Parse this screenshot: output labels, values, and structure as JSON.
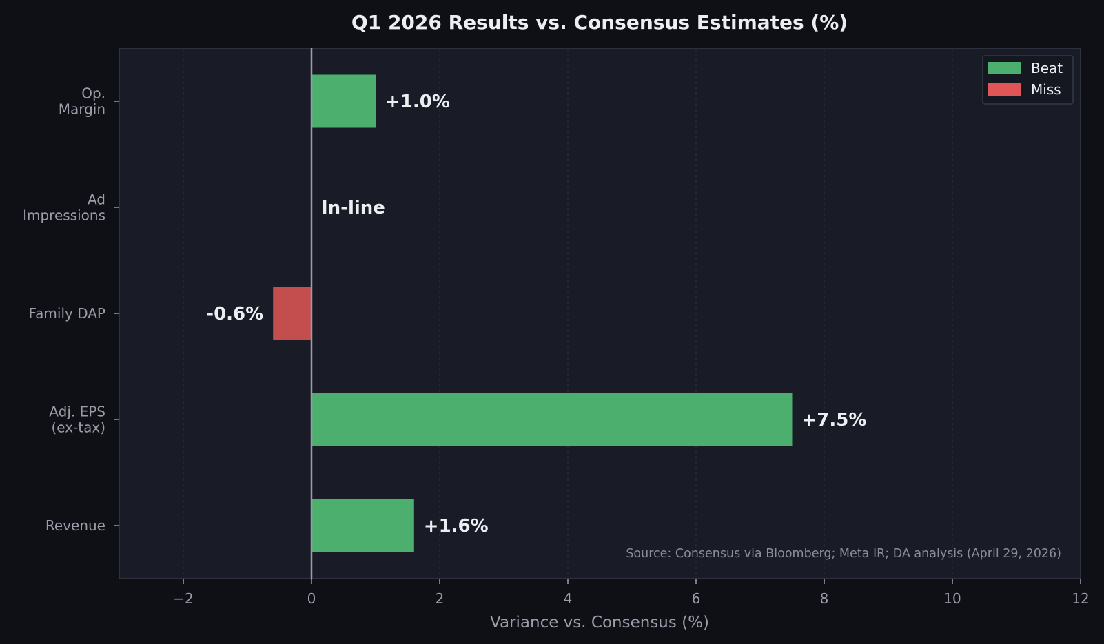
{
  "chart_data": {
    "type": "bar",
    "orientation": "horizontal",
    "title": "Q1 2026 Results vs. Consensus Estimates (%)",
    "xlabel": "Variance vs. Consensus (%)",
    "ylabel": "",
    "xlim": [
      -3,
      12
    ],
    "xticks": [
      -2,
      0,
      2,
      4,
      6,
      8,
      10,
      12
    ],
    "xtick_labels": [
      "−2",
      "0",
      "2",
      "4",
      "6",
      "8",
      "10",
      "12"
    ],
    "categories": [
      {
        "label_lines": [
          "Op.",
          "Margin"
        ],
        "value": 1.0,
        "status": "Beat",
        "data_label": "+1.0%"
      },
      {
        "label_lines": [
          "Ad",
          "Impressions"
        ],
        "value": 0.0,
        "status": "In-line",
        "data_label": "In-line"
      },
      {
        "label_lines": [
          "Family DAP"
        ],
        "value": -0.6,
        "status": "Miss",
        "data_label": "-0.6%"
      },
      {
        "label_lines": [
          "Adj. EPS",
          "(ex-tax)"
        ],
        "value": 7.5,
        "status": "Beat",
        "data_label": "+7.5%"
      },
      {
        "label_lines": [
          "Revenue"
        ],
        "value": 1.6,
        "status": "Beat",
        "data_label": "+1.6%"
      }
    ],
    "legend": {
      "placement": "top-right",
      "entries": [
        {
          "label": "Beat",
          "color": "#4caf6e"
        },
        {
          "label": "Miss",
          "color": "#e05555"
        }
      ]
    },
    "bar_colors": {
      "Beat": "#4caf6e",
      "Miss": "#c44d4d"
    },
    "grid": true,
    "source_note": "Source: Consensus via Bloomberg; Meta IR; DA analysis (April 29, 2026)"
  }
}
